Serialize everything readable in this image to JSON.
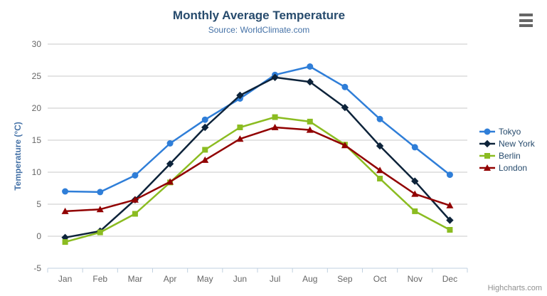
{
  "chart_data": {
    "type": "line",
    "title": "Monthly Average Temperature",
    "subtitle": "Source: WorldClimate.com",
    "xlabel": "",
    "ylabel": "Temperature (°C)",
    "categories": [
      "Jan",
      "Feb",
      "Mar",
      "Apr",
      "May",
      "Jun",
      "Jul",
      "Aug",
      "Sep",
      "Oct",
      "Nov",
      "Dec"
    ],
    "yticks": [
      -5,
      0,
      5,
      10,
      15,
      20,
      25,
      30
    ],
    "ylim": [
      -5,
      30
    ],
    "grid": true,
    "legend_position": "right",
    "series": [
      {
        "name": "Tokyo",
        "color": "#2f7ed8",
        "marker": "circle",
        "values": [
          7.0,
          6.9,
          9.5,
          14.5,
          18.2,
          21.5,
          25.2,
          26.5,
          23.3,
          18.3,
          13.9,
          9.6
        ]
      },
      {
        "name": "New York",
        "color": "#0d233a",
        "marker": "diamond",
        "values": [
          -0.2,
          0.8,
          5.7,
          11.3,
          17.0,
          22.0,
          24.8,
          24.1,
          20.1,
          14.1,
          8.6,
          2.5
        ]
      },
      {
        "name": "Berlin",
        "color": "#8bbc21",
        "marker": "square",
        "values": [
          -0.9,
          0.6,
          3.5,
          8.4,
          13.5,
          17.0,
          18.6,
          17.9,
          14.3,
          9.0,
          3.9,
          1.0
        ]
      },
      {
        "name": "London",
        "color": "#910000",
        "marker": "triangle",
        "values": [
          3.9,
          4.2,
          5.7,
          8.5,
          11.9,
          15.2,
          17.0,
          16.6,
          14.2,
          10.3,
          6.6,
          4.8
        ]
      }
    ]
  },
  "colors": {
    "title": "#274b6d",
    "subtitle": "#4572a7",
    "axis_title": "#4572a7",
    "axis_label": "#666666",
    "grid_line": "#c9c9c9",
    "axis_line": "#c0d0e0",
    "legend_text": "#274b6d",
    "credits": "#909090"
  },
  "icons": {
    "context_menu": "hamburger-icon"
  },
  "credits": {
    "label": "Highcharts.com"
  }
}
